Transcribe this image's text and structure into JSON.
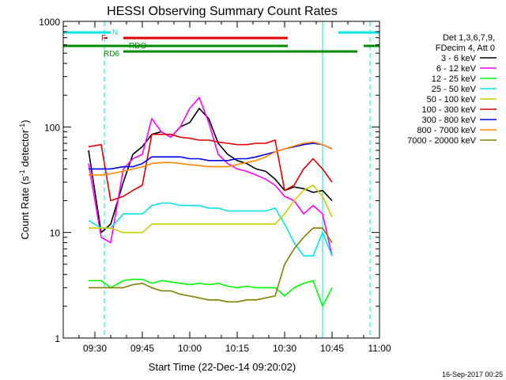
{
  "chart_data": {
    "type": "line",
    "title": "HESSI Observing Summary Count Rates",
    "xlabel": "Start Time (22-Dec-14 09:20:02)",
    "ylabel_main": "Count Rate (s",
    "ylabel_sup1": "-1",
    "ylabel_mid": " detector",
    "ylabel_sup2": "-1",
    "ylabel_end": ")",
    "ylabel": "Count Rate (s-1 detector-1)",
    "y_scale": "log",
    "ylim": [
      1,
      1000
    ],
    "xlim_minutes": [
      0,
      100
    ],
    "x_ticks": [
      {
        "label": "09:30",
        "minute": 10
      },
      {
        "label": "09:45",
        "minute": 25
      },
      {
        "label": "10:00",
        "minute": 40
      },
      {
        "label": "10:15",
        "minute": 55
      },
      {
        "label": "10:30",
        "minute": 70
      },
      {
        "label": "10:45",
        "minute": 85
      },
      {
        "label": "11:00",
        "minute": 100
      }
    ],
    "y_ticks": [
      {
        "label": "1",
        "value": 1
      },
      {
        "label": "10",
        "value": 10
      },
      {
        "label": "100",
        "value": 100
      },
      {
        "label": "1000",
        "value": 1000
      }
    ],
    "legend": {
      "header": [
        "Det 1,3,6,7,9,",
        "FDecim 4, Att 0"
      ],
      "placement": "right"
    },
    "timestamp": "16-Sep-2017 00:25",
    "flag_labels": {
      "N": "N",
      "F": "F",
      "RDO": "RDO",
      "RD6": "RD6"
    },
    "flags": [
      {
        "name": "N",
        "color": "#00e5e5",
        "segments": [
          [
            0,
            15
          ],
          [
            87,
            100
          ]
        ]
      },
      {
        "name": "F",
        "color": "#e00000",
        "segments": [
          [
            13,
            14
          ],
          [
            19,
            71
          ]
        ]
      },
      {
        "name": "RDO",
        "color": "#008c00",
        "segments": [
          [
            0,
            71
          ],
          [
            95,
            100
          ]
        ]
      },
      {
        "name": "RD6",
        "color": "#008c00",
        "segments": [
          [
            19,
            28
          ],
          [
            28,
            71
          ],
          [
            71,
            93
          ]
        ]
      }
    ],
    "night_markers": [
      {
        "minute": 13,
        "color": "#00e5e5",
        "style": "dashed"
      },
      {
        "minute": 82,
        "color": "#00e5e5",
        "style": "solid"
      },
      {
        "minute": 97,
        "color": "#00e5e5",
        "style": "dashed"
      }
    ],
    "series": [
      {
        "name": "3 - 6 keV",
        "color": "#000000",
        "points": [
          [
            8,
            60
          ],
          [
            12,
            10
          ],
          [
            15,
            12
          ],
          [
            19,
            30
          ],
          [
            22,
            55
          ],
          [
            25,
            65
          ],
          [
            28,
            85
          ],
          [
            31,
            90
          ],
          [
            34,
            80
          ],
          [
            37,
            100
          ],
          [
            40,
            110
          ],
          [
            43,
            150
          ],
          [
            46,
            120
          ],
          [
            49,
            70
          ],
          [
            52,
            55
          ],
          [
            55,
            48
          ],
          [
            58,
            45
          ],
          [
            61,
            40
          ],
          [
            64,
            38
          ],
          [
            67,
            32
          ],
          [
            70,
            25
          ],
          [
            73,
            27
          ],
          [
            76,
            26
          ],
          [
            79,
            24
          ],
          [
            82,
            25
          ],
          [
            85,
            20
          ]
        ]
      },
      {
        "name": "6 - 12 keV",
        "color": "#ff00ff",
        "points": [
          [
            8,
            45
          ],
          [
            12,
            9
          ],
          [
            15,
            8
          ],
          [
            19,
            40
          ],
          [
            22,
            50
          ],
          [
            25,
            55
          ],
          [
            28,
            120
          ],
          [
            31,
            90
          ],
          [
            34,
            80
          ],
          [
            37,
            100
          ],
          [
            40,
            150
          ],
          [
            43,
            190
          ],
          [
            46,
            110
          ],
          [
            49,
            55
          ],
          [
            52,
            45
          ],
          [
            55,
            40
          ],
          [
            58,
            38
          ],
          [
            61,
            35
          ],
          [
            64,
            32
          ],
          [
            67,
            28
          ],
          [
            70,
            22
          ],
          [
            73,
            20
          ],
          [
            76,
            15
          ],
          [
            79,
            18
          ],
          [
            82,
            15
          ],
          [
            85,
            6
          ]
        ]
      },
      {
        "name": "12 - 25 keV",
        "color": "#00ff00",
        "points": [
          [
            8,
            3.5
          ],
          [
            12,
            3.5
          ],
          [
            15,
            3.0
          ],
          [
            19,
            3.5
          ],
          [
            22,
            3.6
          ],
          [
            25,
            3.6
          ],
          [
            28,
            3.3
          ],
          [
            31,
            3.5
          ],
          [
            34,
            3.4
          ],
          [
            37,
            3.3
          ],
          [
            40,
            3.2
          ],
          [
            43,
            3.3
          ],
          [
            46,
            3.2
          ],
          [
            49,
            3.3
          ],
          [
            52,
            3.1
          ],
          [
            55,
            3.0
          ],
          [
            58,
            3.1
          ],
          [
            61,
            3.0
          ],
          [
            64,
            3.0
          ],
          [
            67,
            3.0
          ],
          [
            70,
            2.5
          ],
          [
            73,
            3.0
          ],
          [
            76,
            3.3
          ],
          [
            79,
            3.5
          ],
          [
            82,
            2.0
          ],
          [
            85,
            3.0
          ]
        ]
      },
      {
        "name": "25 - 50 keV",
        "color": "#00e5e5",
        "points": [
          [
            8,
            13
          ],
          [
            12,
            11
          ],
          [
            15,
            11
          ],
          [
            19,
            15
          ],
          [
            22,
            15
          ],
          [
            25,
            15
          ],
          [
            28,
            18
          ],
          [
            31,
            19
          ],
          [
            34,
            19
          ],
          [
            37,
            18
          ],
          [
            40,
            18
          ],
          [
            43,
            18
          ],
          [
            46,
            17
          ],
          [
            49,
            17
          ],
          [
            52,
            16
          ],
          [
            55,
            16
          ],
          [
            58,
            16
          ],
          [
            61,
            16
          ],
          [
            64,
            16
          ],
          [
            67,
            17
          ],
          [
            70,
            12
          ],
          [
            73,
            8
          ],
          [
            76,
            6
          ],
          [
            79,
            6
          ],
          [
            82,
            10
          ],
          [
            85,
            6
          ]
        ]
      },
      {
        "name": "50 - 100 keV",
        "color": "#cccc00",
        "points": [
          [
            8,
            11
          ],
          [
            12,
            11
          ],
          [
            15,
            11
          ],
          [
            19,
            10
          ],
          [
            22,
            10
          ],
          [
            25,
            10
          ],
          [
            28,
            12
          ],
          [
            31,
            12
          ],
          [
            34,
            12
          ],
          [
            37,
            12
          ],
          [
            40,
            12
          ],
          [
            43,
            12
          ],
          [
            46,
            12
          ],
          [
            49,
            12
          ],
          [
            52,
            12
          ],
          [
            55,
            12
          ],
          [
            58,
            12
          ],
          [
            61,
            12
          ],
          [
            64,
            12
          ],
          [
            67,
            12
          ],
          [
            70,
            15
          ],
          [
            73,
            20
          ],
          [
            76,
            25
          ],
          [
            79,
            28
          ],
          [
            82,
            22
          ],
          [
            85,
            14
          ]
        ]
      },
      {
        "name": "100 - 300 keV",
        "color": "#e00000",
        "points": [
          [
            8,
            65
          ],
          [
            12,
            68
          ],
          [
            15,
            20
          ],
          [
            19,
            22
          ],
          [
            22,
            25
          ],
          [
            25,
            28
          ],
          [
            28,
            85
          ],
          [
            31,
            85
          ],
          [
            34,
            85
          ],
          [
            37,
            80
          ],
          [
            40,
            78
          ],
          [
            43,
            75
          ],
          [
            46,
            75
          ],
          [
            49,
            72
          ],
          [
            52,
            70
          ],
          [
            55,
            68
          ],
          [
            58,
            68
          ],
          [
            61,
            70
          ],
          [
            64,
            70
          ],
          [
            67,
            75
          ],
          [
            70,
            25
          ],
          [
            73,
            28
          ],
          [
            76,
            40
          ],
          [
            79,
            50
          ],
          [
            82,
            40
          ],
          [
            85,
            30
          ]
        ]
      },
      {
        "name": "300 - 800 keV",
        "color": "#0000ee",
        "points": [
          [
            8,
            40
          ],
          [
            12,
            40
          ],
          [
            15,
            40
          ],
          [
            19,
            42
          ],
          [
            22,
            42
          ],
          [
            25,
            45
          ],
          [
            28,
            52
          ],
          [
            31,
            52
          ],
          [
            34,
            52
          ],
          [
            37,
            52
          ],
          [
            40,
            50
          ],
          [
            43,
            50
          ],
          [
            46,
            48
          ],
          [
            49,
            48
          ],
          [
            52,
            48
          ],
          [
            55,
            50
          ],
          [
            58,
            50
          ],
          [
            61,
            52
          ],
          [
            64,
            55
          ],
          [
            67,
            58
          ],
          [
            70,
            62
          ],
          [
            73,
            65
          ],
          [
            76,
            68
          ],
          [
            79,
            70
          ],
          [
            82,
            68
          ],
          [
            85,
            62
          ]
        ]
      },
      {
        "name": "800 - 7000 keV",
        "color": "#ff8800",
        "points": [
          [
            8,
            35
          ],
          [
            12,
            35
          ],
          [
            15,
            36
          ],
          [
            19,
            38
          ],
          [
            22,
            40
          ],
          [
            25,
            42
          ],
          [
            28,
            45
          ],
          [
            31,
            46
          ],
          [
            34,
            46
          ],
          [
            37,
            45
          ],
          [
            40,
            44
          ],
          [
            43,
            43
          ],
          [
            46,
            42
          ],
          [
            49,
            42
          ],
          [
            52,
            42
          ],
          [
            55,
            44
          ],
          [
            58,
            46
          ],
          [
            61,
            48
          ],
          [
            64,
            52
          ],
          [
            67,
            58
          ],
          [
            70,
            62
          ],
          [
            73,
            66
          ],
          [
            76,
            70
          ],
          [
            79,
            72
          ],
          [
            82,
            68
          ],
          [
            85,
            62
          ]
        ]
      },
      {
        "name": "7000 - 20000 keV",
        "color": "#808000",
        "points": [
          [
            8,
            3.0
          ],
          [
            12,
            3.0
          ],
          [
            15,
            3.0
          ],
          [
            19,
            3.0
          ],
          [
            22,
            3.2
          ],
          [
            25,
            3.3
          ],
          [
            28,
            3.0
          ],
          [
            31,
            2.8
          ],
          [
            34,
            2.8
          ],
          [
            37,
            2.6
          ],
          [
            40,
            2.5
          ],
          [
            43,
            2.4
          ],
          [
            46,
            2.3
          ],
          [
            49,
            2.3
          ],
          [
            52,
            2.2
          ],
          [
            55,
            2.2
          ],
          [
            58,
            2.3
          ],
          [
            61,
            2.3
          ],
          [
            64,
            2.4
          ],
          [
            67,
            2.5
          ],
          [
            70,
            5.0
          ],
          [
            73,
            7.0
          ],
          [
            76,
            9.0
          ],
          [
            79,
            11.0
          ],
          [
            82,
            11.0
          ],
          [
            85,
            8.0
          ]
        ]
      }
    ]
  }
}
